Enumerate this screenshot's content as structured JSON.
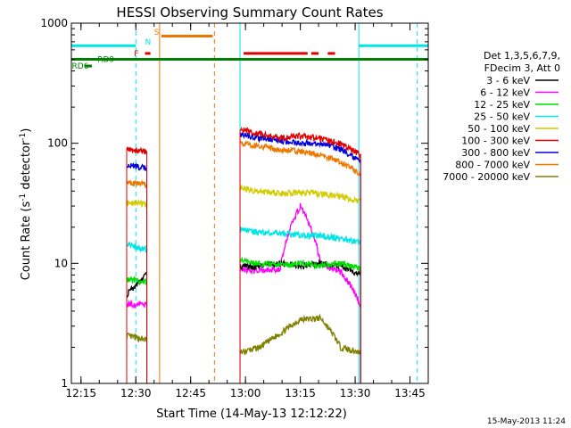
{
  "chart_data": {
    "type": "line",
    "title": "HESSI Observing Summary Count Rates",
    "xlabel": "Start Time (14-May-13 12:12:22)",
    "ylabel_main": "Count Rate (s",
    "ylabel_sup1": "-1",
    "ylabel_mid": " detector",
    "ylabel_sup2": "-1",
    "ylabel_end": ")",
    "y_scale": "log",
    "xlim": [
      "12:12:22",
      "13:50:00"
    ],
    "ylim": [
      1,
      1000
    ],
    "x_ticks": [
      "12:15",
      "12:30",
      "12:45",
      "13:00",
      "13:15",
      "13:30",
      "13:45"
    ],
    "y_ticks": [
      {
        "value": 1,
        "label": "1"
      },
      {
        "value": 10,
        "label": "10"
      },
      {
        "value": 100,
        "label": "100"
      },
      {
        "value": 1000,
        "label": "1000"
      }
    ],
    "legend": {
      "placement": "right",
      "header": [
        "Det 1,3,5,6,7,9,",
        "FDecim 3, Att 0"
      ],
      "entries": [
        {
          "label": "3 - 6 keV",
          "color": "#000000"
        },
        {
          "label": "6 - 12 keV",
          "color": "#ff00ff"
        },
        {
          "label": "12 - 25 keV",
          "color": "#00dd00"
        },
        {
          "label": "25 - 50 keV",
          "color": "#00e5e5"
        },
        {
          "label": "50 - 100 keV",
          "color": "#d4cc00"
        },
        {
          "label": "100 - 300 keV",
          "color": "#e00000"
        },
        {
          "label": "300 - 800 keV",
          "color": "#0000dd"
        },
        {
          "label": "800 - 7000 keV",
          "color": "#ee7700"
        },
        {
          "label": "7000 - 20000 keV",
          "color": "#808000"
        }
      ]
    },
    "segments": [
      {
        "start": "12:27:30",
        "end": "12:33:00"
      },
      {
        "start": "12:58:30",
        "end": "13:31:30"
      }
    ],
    "series": [
      {
        "name": "7000 - 20000 keV",
        "color": "#808000",
        "values": [
          [
            2.5,
            2.3
          ],
          [
            1.8,
            2.0,
            2.6,
            3.4,
            3.5,
            2.0,
            1.8
          ]
        ]
      },
      {
        "name": "6 - 12 keV",
        "color": "#ff00ff",
        "values": [
          [
            4.6,
            4.5
          ],
          [
            9,
            8.6,
            9,
            30,
            10,
            8.5,
            4.5
          ]
        ]
      },
      {
        "name": "3 - 6 keV",
        "color": "#000000",
        "values": [
          [
            5.5,
            8
          ],
          [
            9.5,
            9.4,
            10,
            9.5,
            10,
            9.5,
            8
          ]
        ]
      },
      {
        "name": "12 - 25 keV",
        "color": "#00dd00",
        "values": [
          [
            7.3,
            7
          ],
          [
            10.5,
            10,
            9.6,
            10,
            9.6,
            10,
            9
          ]
        ]
      },
      {
        "name": "25 - 50 keV",
        "color": "#00e5e5",
        "values": [
          [
            14.5,
            13
          ],
          [
            19,
            18,
            18,
            17,
            17,
            16,
            15
          ]
        ]
      },
      {
        "name": "50 - 100 keV",
        "color": "#d4cc00",
        "values": [
          [
            32,
            31
          ],
          [
            42,
            40,
            38,
            39,
            38,
            36,
            33
          ]
        ]
      },
      {
        "name": "800 - 7000 keV",
        "color": "#ee7700",
        "values": [
          [
            47,
            45
          ],
          [
            100,
            95,
            88,
            85,
            80,
            70,
            55
          ]
        ]
      },
      {
        "name": "300 - 800 keV",
        "color": "#0000dd",
        "values": [
          [
            65,
            62
          ],
          [
            120,
            110,
            105,
            100,
            100,
            90,
            70
          ]
        ]
      },
      {
        "name": "100 - 300 keV",
        "color": "#e00000",
        "values": [
          [
            88,
            85
          ],
          [
            130,
            120,
            110,
            115,
            110,
            100,
            80
          ]
        ]
      }
    ],
    "flags": [
      {
        "label": "",
        "color": "#00e5e5",
        "level": 650,
        "spans": [
          [
            "12:12:22",
            "12:30:00"
          ],
          [
            "13:31:00",
            "13:50:00"
          ]
        ]
      },
      {
        "label": "S",
        "color": "#ee7700",
        "level": 780,
        "spans": [
          [
            "12:37:00",
            "12:51:00"
          ]
        ]
      },
      {
        "label": "F",
        "color": "#e00000",
        "level": 560,
        "spans": [
          [
            "12:32:30",
            "12:34:00"
          ],
          [
            "12:59:30",
            "13:17:00"
          ],
          [
            "13:18:00",
            "13:20:00"
          ],
          [
            "13:22:30",
            "13:24:30"
          ]
        ]
      },
      {
        "label": "RD9",
        "color": "#008000",
        "level": 500,
        "spans": [
          [
            "12:12:22",
            "13:50:00"
          ]
        ]
      },
      {
        "label": "RD6",
        "color": "#008000",
        "level": 440,
        "spans": [
          [
            "12:16:00",
            "12:18:00"
          ]
        ]
      }
    ],
    "flag_labels": {
      "N": "N",
      "S": "S",
      "F": "F",
      "RD9": "RD9",
      "RD6": "RD6"
    },
    "vlines": [
      {
        "time": "12:30:00",
        "color": "#00e5e5",
        "style": "dashed"
      },
      {
        "time": "12:36:30",
        "color": "#ee7700",
        "style": "solid"
      },
      {
        "time": "12:51:30",
        "color": "#ee7700",
        "style": "dashed"
      },
      {
        "time": "12:58:30",
        "color": "#00e5e5",
        "style": "solid"
      },
      {
        "time": "13:31:00",
        "color": "#00e5e5",
        "style": "solid"
      },
      {
        "time": "13:47:00",
        "color": "#00e5e5",
        "style": "dashed"
      }
    ],
    "timestamp": "15-May-2013 11:24"
  }
}
